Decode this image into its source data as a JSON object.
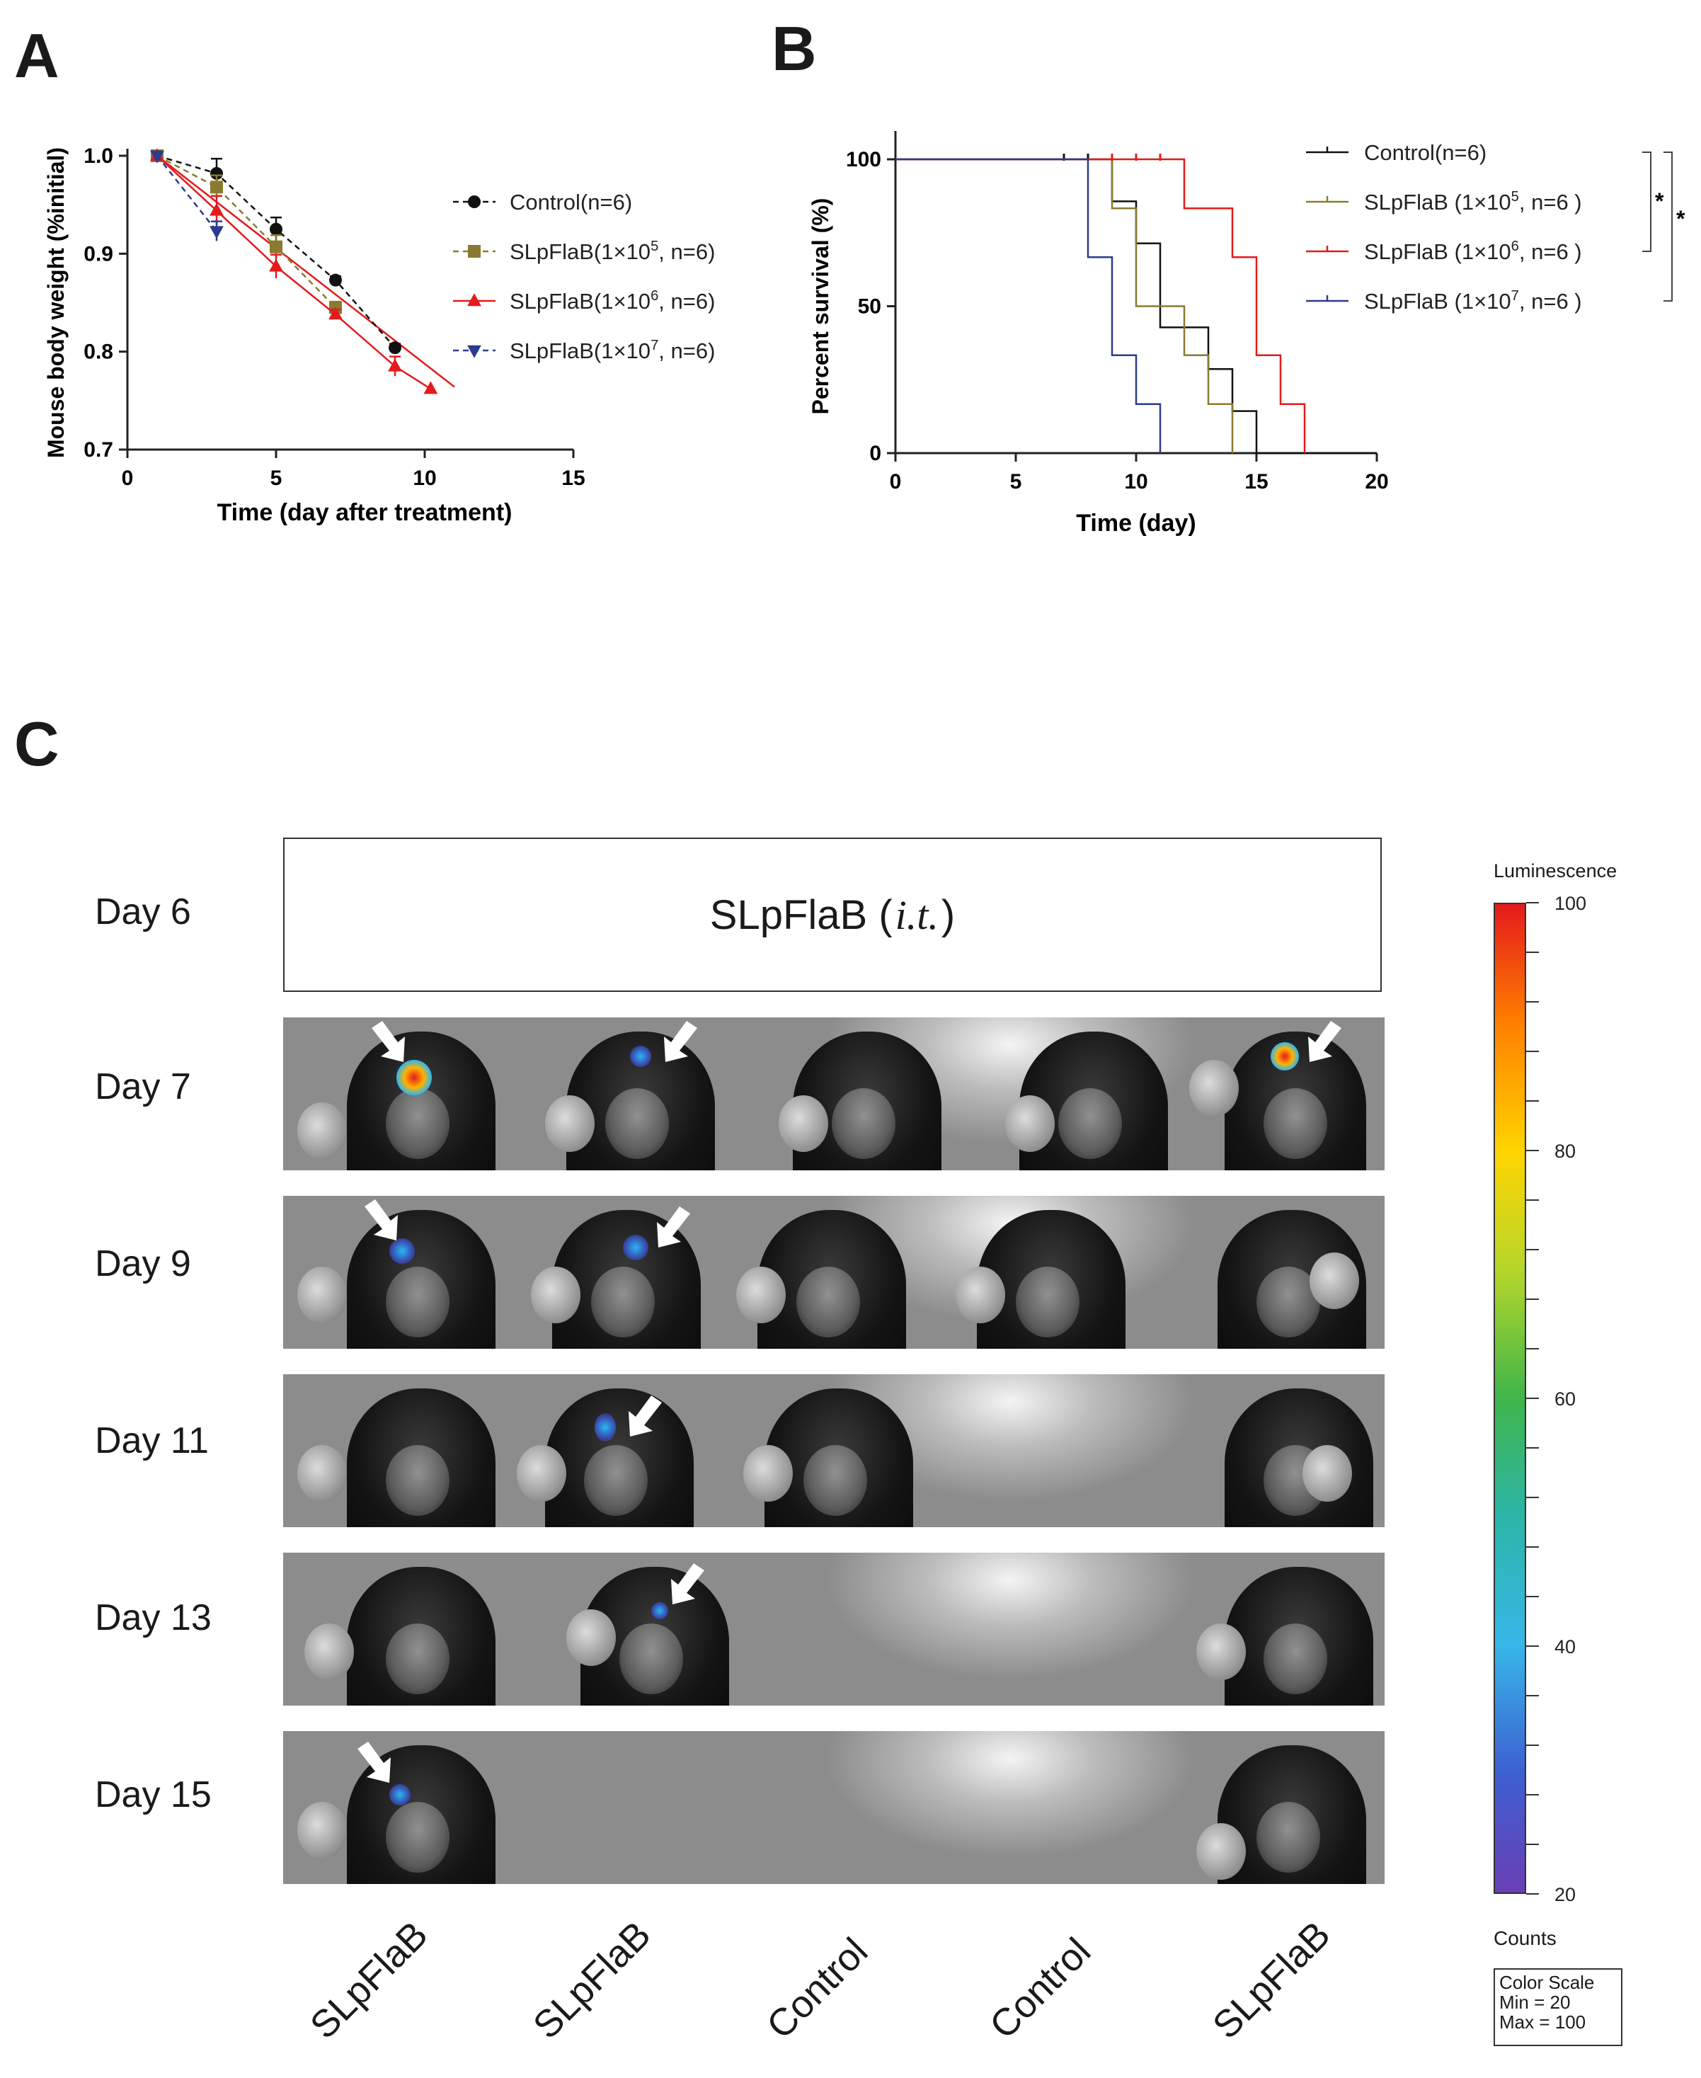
{
  "panels": {
    "a": "A",
    "b": "B",
    "c": "C"
  },
  "chart_data": [
    {
      "type": "line",
      "panel": "A",
      "xlabel": "Time (day after treatment)",
      "ylabel": "Mouse body weight (%initial)",
      "xlim": [
        0,
        15
      ],
      "ylim": [
        0.7,
        1.0
      ],
      "xticks": [
        "0",
        "5",
        "10",
        "15"
      ],
      "yticks": [
        "0.7",
        "0.8",
        "0.9",
        "1.0"
      ],
      "legend": "right",
      "series": [
        {
          "name": "Control(n=6)",
          "label_main": "Control(n=6)",
          "color": "#111111",
          "marker": "circle",
          "dash": true,
          "x": [
            1,
            3,
            5,
            7,
            9
          ],
          "y": [
            1.0,
            0.982,
            0.925,
            0.873,
            0.804
          ],
          "err": [
            0,
            0.015,
            0.012,
            0.004,
            0.004
          ]
        },
        {
          "name": "SLpFlaB(1×10^5, n=6)",
          "label_main": "SLpFlaB(1×10",
          "label_sup": "5",
          "label_end": ", n=6)",
          "color": "#8a7a30",
          "marker": "square",
          "dash": true,
          "x": [
            1,
            3,
            5,
            7
          ],
          "y": [
            1.0,
            0.968,
            0.907,
            0.845
          ],
          "err": [
            0,
            0.012,
            0.012,
            0.006
          ]
        },
        {
          "name": "SLpFlaB(1×10^6, n=6)",
          "label_main": "SLpFlaB(1×10",
          "label_sup": "6",
          "label_end": ", n=6)",
          "color": "#e41a1c",
          "marker": "triangle",
          "dash": false,
          "x": [
            1,
            3,
            5,
            7,
            9,
            10.2
          ],
          "y": [
            1.0,
            0.944,
            0.887,
            0.838,
            0.785,
            0.762
          ],
          "err": [
            0,
            0.015,
            0.012,
            0.005,
            0.01,
            0
          ]
        },
        {
          "name": "SLpFlaB(1×10^7, n=6)",
          "label_main": "SLpFlaB(1×10",
          "label_sup": "7",
          "label_end": ", n=6)",
          "color": "#2b3b8f",
          "marker": "triangle-down",
          "dash": true,
          "x": [
            1,
            3
          ],
          "y": [
            1.0,
            0.923
          ],
          "err": [
            0,
            0.01
          ]
        }
      ],
      "fit_line": {
        "color": "#e41a1c",
        "x": [
          1,
          11
        ],
        "y": [
          1.0,
          0.764
        ]
      }
    },
    {
      "type": "line",
      "panel": "B",
      "xlabel": "Time (day)",
      "ylabel": "Percent survival (%)",
      "xlim": [
        0,
        20
      ],
      "ylim": [
        0,
        100
      ],
      "xticks": [
        "0",
        "5",
        "10",
        "15",
        "20"
      ],
      "yticks": [
        "0",
        "50",
        "100"
      ],
      "legend": "right",
      "series": [
        {
          "name": "Control(n=6)",
          "label_main": "Control(n=6)",
          "color": "#111111",
          "steps": [
            [
              0,
              100
            ],
            [
              9,
              100
            ],
            [
              9,
              85.7
            ],
            [
              10,
              85.7
            ],
            [
              10,
              71.4
            ],
            [
              11,
              71.4
            ],
            [
              11,
              42.8
            ],
            [
              13,
              42.8
            ],
            [
              13,
              28.6
            ],
            [
              14,
              28.6
            ],
            [
              14,
              14.3
            ],
            [
              15,
              14.3
            ],
            [
              15,
              0
            ],
            [
              20,
              0
            ]
          ],
          "censor": [
            [
              7,
              100
            ],
            [
              8,
              100
            ]
          ]
        },
        {
          "name": "SLpFlaB (1×10^5, n=6 )",
          "label_main": "SLpFlaB (1×10",
          "label_sup": "5",
          "label_end": ", n=6  )",
          "color": "#8a7a30",
          "steps": [
            [
              0,
              100
            ],
            [
              9,
              100
            ],
            [
              9,
              83.3
            ],
            [
              10,
              83.3
            ],
            [
              10,
              50
            ],
            [
              12,
              50
            ],
            [
              12,
              33.3
            ],
            [
              13,
              33.3
            ],
            [
              13,
              16.7
            ],
            [
              14,
              16.7
            ],
            [
              14,
              0
            ]
          ],
          "censor": []
        },
        {
          "name": "SLpFlaB (1×10^6, n=6 )",
          "label_main": "SLpFlaB (1×10",
          "label_sup": "6",
          "label_end": ", n=6  )",
          "color": "#e41a1c",
          "steps": [
            [
              0,
              100
            ],
            [
              12,
              100
            ],
            [
              12,
              83.3
            ],
            [
              14,
              83.3
            ],
            [
              14,
              66.7
            ],
            [
              15,
              66.7
            ],
            [
              15,
              33.3
            ],
            [
              16,
              33.3
            ],
            [
              16,
              16.7
            ],
            [
              17,
              16.7
            ],
            [
              17,
              0
            ]
          ],
          "censor": [
            [
              9,
              100
            ],
            [
              10,
              100
            ],
            [
              11,
              100
            ]
          ]
        },
        {
          "name": "SLpFlaB (1×10^7, n=6 )",
          "label_main": "SLpFlaB (1×10",
          "label_sup": "7",
          "label_end": ", n=6  )",
          "color": "#2b3b8f",
          "steps": [
            [
              0,
              100
            ],
            [
              8,
              100
            ],
            [
              8,
              66.7
            ],
            [
              9,
              66.7
            ],
            [
              9,
              33.3
            ],
            [
              10,
              33.3
            ],
            [
              10,
              16.7
            ],
            [
              11,
              16.7
            ],
            [
              11,
              0
            ]
          ],
          "censor": []
        }
      ],
      "significance": [
        "*",
        "*"
      ]
    }
  ],
  "panel_c": {
    "header": "SLpFlaB (",
    "header_italic": "i.t.",
    "header_end": ")",
    "days": [
      "Day 6",
      "Day 7",
      "Day 9",
      "Day 11",
      "Day 13",
      "Day 15"
    ],
    "groups": [
      "SLpFlaB",
      "SLpFlaB",
      "Control",
      "Control",
      "SLpFlaB"
    ],
    "scale": {
      "title": "Luminescence",
      "ticks": [
        "100",
        "80",
        "60",
        "40",
        "20"
      ],
      "counts_label": "Counts",
      "box_title": "Color Scale",
      "box_min": "Min = 20",
      "box_max": "Max = 100"
    }
  }
}
